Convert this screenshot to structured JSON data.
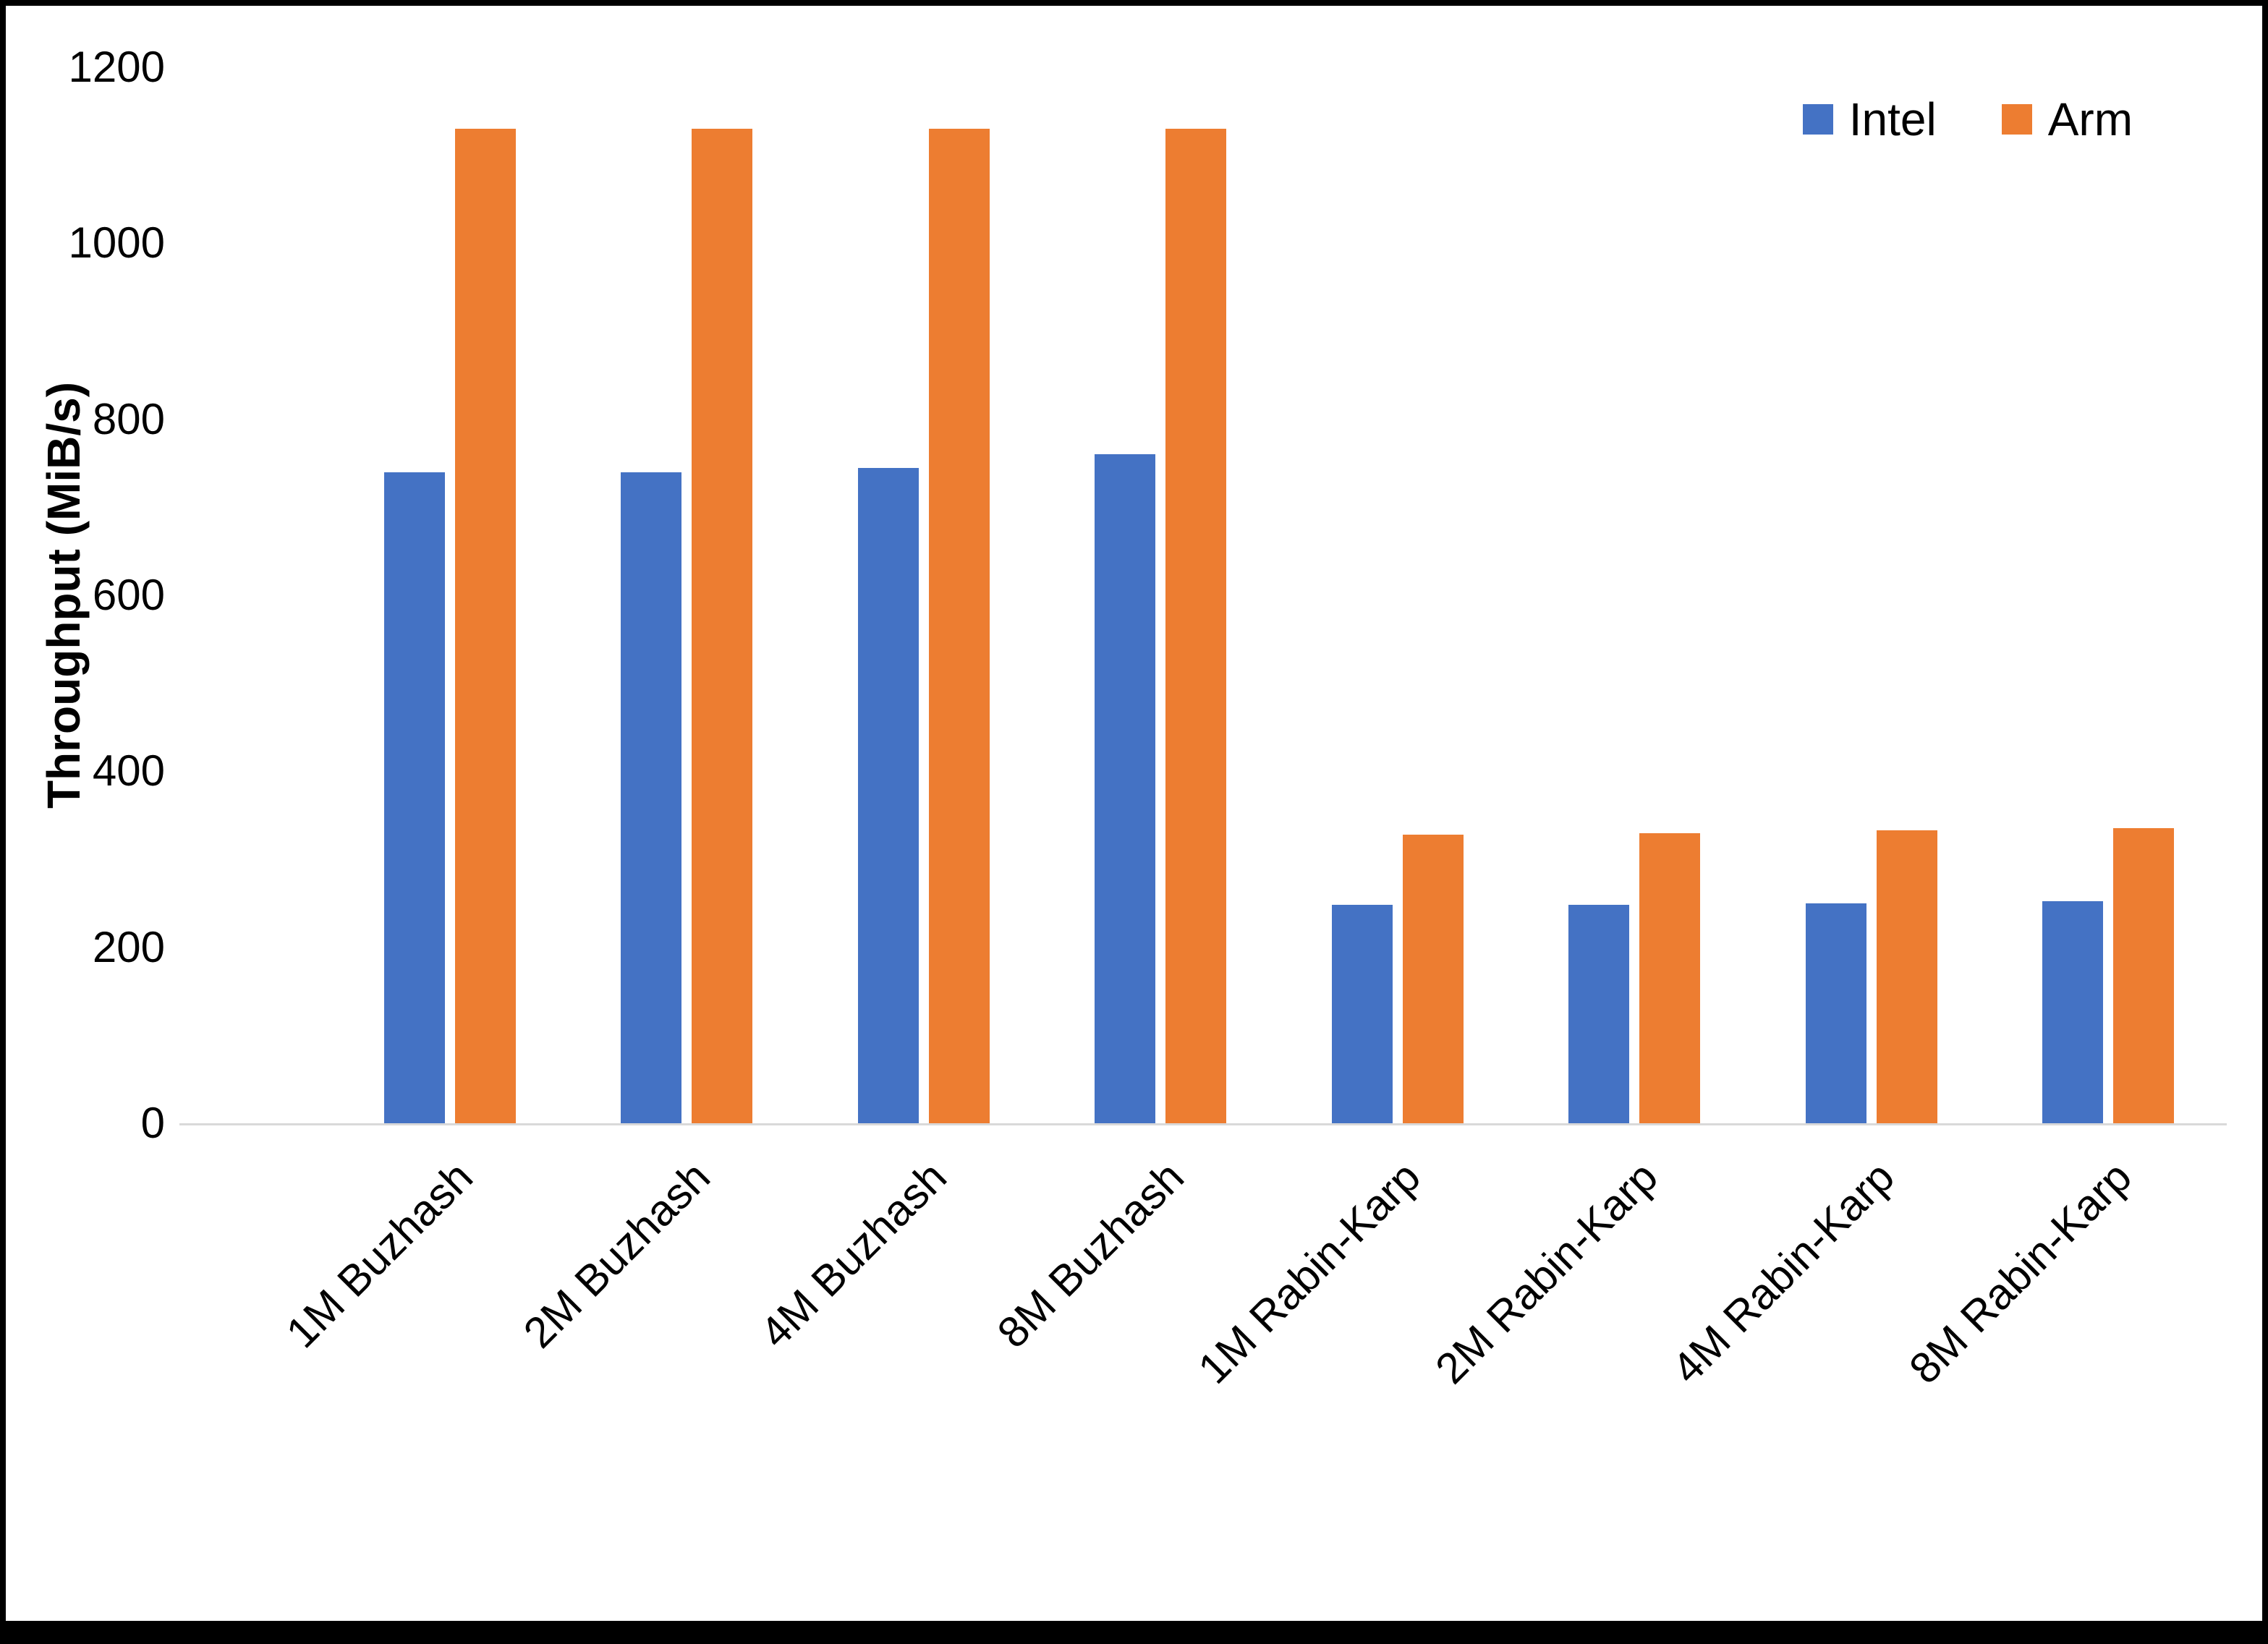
{
  "chart_data": {
    "type": "bar",
    "title": "",
    "xlabel": "",
    "ylabel": "Throughput (MiB/s)",
    "ylim": [
      0,
      1200
    ],
    "yticks": [
      1200,
      1000,
      800,
      600,
      400,
      200,
      0
    ],
    "grid": false,
    "legend_position": "top-right",
    "categories": [
      "1M Buzhash",
      "2M Buzhash",
      "4M Buzhash",
      "8M Buzhash",
      "1M Rabin-Karp",
      "2M Rabin-Karp",
      "4M Rabin-Karp",
      "8M Rabin-Karp"
    ],
    "series": [
      {
        "name": "Intel",
        "color": "#4472C4",
        "values": [
          740,
          740,
          745,
          760,
          248,
          248,
          250,
          252
        ]
      },
      {
        "name": "Arm",
        "color": "#ED7D31",
        "values": [
          1130,
          1130,
          1130,
          1130,
          328,
          330,
          333,
          335
        ]
      }
    ]
  },
  "colors": {
    "axis_line": "#D9D9D9",
    "text": "#000000",
    "background": "#FFFFFF",
    "frame": "#000000"
  }
}
